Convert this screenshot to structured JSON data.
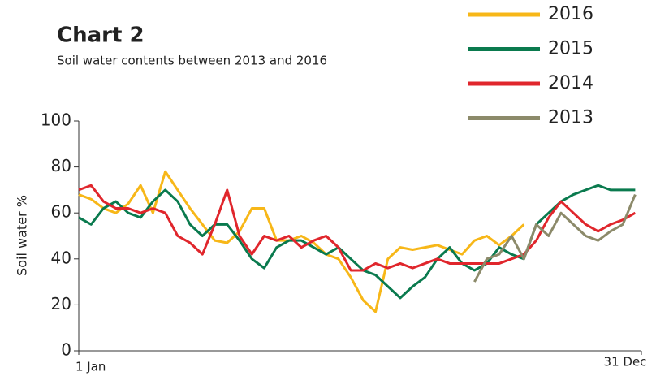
{
  "chart_data": {
    "type": "line",
    "title": "Chart 2",
    "subtitle": "Soil water contents between 2013 and 2016",
    "y_label": "Soil water %",
    "x": [
      1,
      9,
      17,
      25,
      33,
      41,
      49,
      57,
      65,
      73,
      81,
      89,
      97,
      105,
      113,
      121,
      129,
      137,
      145,
      153,
      161,
      169,
      177,
      185,
      193,
      201,
      209,
      217,
      225,
      233,
      241,
      249,
      257,
      265,
      273,
      281,
      289,
      297,
      305,
      313,
      321,
      329,
      337,
      345,
      353,
      361
    ],
    "xlim": [
      1,
      365
    ],
    "xticks": [
      {
        "value": 1,
        "label": "1 Jan"
      },
      {
        "value": 365,
        "label": "31 Dec"
      }
    ],
    "ylim": [
      0,
      100
    ],
    "yticks": [
      0,
      20,
      40,
      60,
      80,
      100
    ],
    "legend": "top-right",
    "series": [
      {
        "name": "2016",
        "color": "#f7b718",
        "values": [
          68,
          66,
          62,
          60,
          64,
          72,
          60,
          78,
          70,
          62,
          55,
          48,
          47,
          52,
          62,
          62,
          48,
          48,
          50,
          47,
          42,
          40,
          32,
          22,
          17,
          40,
          45,
          44,
          45,
          46,
          44,
          42,
          48,
          50,
          46,
          50,
          55,
          null,
          null,
          null,
          null,
          null,
          null,
          null,
          null,
          null
        ]
      },
      {
        "name": "2015",
        "color": "#0a7a4e",
        "values": [
          58,
          55,
          62,
          65,
          60,
          58,
          65,
          70,
          65,
          55,
          50,
          55,
          55,
          48,
          40,
          36,
          45,
          48,
          48,
          45,
          42,
          45,
          40,
          35,
          33,
          28,
          23,
          28,
          32,
          40,
          45,
          38,
          35,
          38,
          45,
          42,
          40,
          55,
          60,
          65,
          68,
          70,
          72,
          70,
          70,
          70
        ]
      },
      {
        "name": "2014",
        "color": "#e0262c",
        "values": [
          70,
          72,
          65,
          62,
          62,
          60,
          62,
          60,
          50,
          47,
          42,
          55,
          70,
          50,
          42,
          50,
          48,
          50,
          45,
          48,
          50,
          45,
          35,
          35,
          38,
          36,
          38,
          36,
          38,
          40,
          38,
          38,
          38,
          38,
          38,
          40,
          42,
          48,
          58,
          65,
          60,
          55,
          52,
          55,
          57,
          60
        ]
      },
      {
        "name": "2013",
        "color": "#8c8a6a",
        "values": [
          null,
          null,
          null,
          null,
          null,
          null,
          null,
          null,
          null,
          null,
          null,
          null,
          null,
          null,
          null,
          null,
          null,
          null,
          null,
          null,
          null,
          null,
          null,
          null,
          null,
          null,
          null,
          null,
          null,
          null,
          null,
          null,
          30,
          40,
          42,
          50,
          40,
          55,
          50,
          60,
          55,
          50,
          48,
          52,
          55,
          68
        ]
      }
    ]
  }
}
